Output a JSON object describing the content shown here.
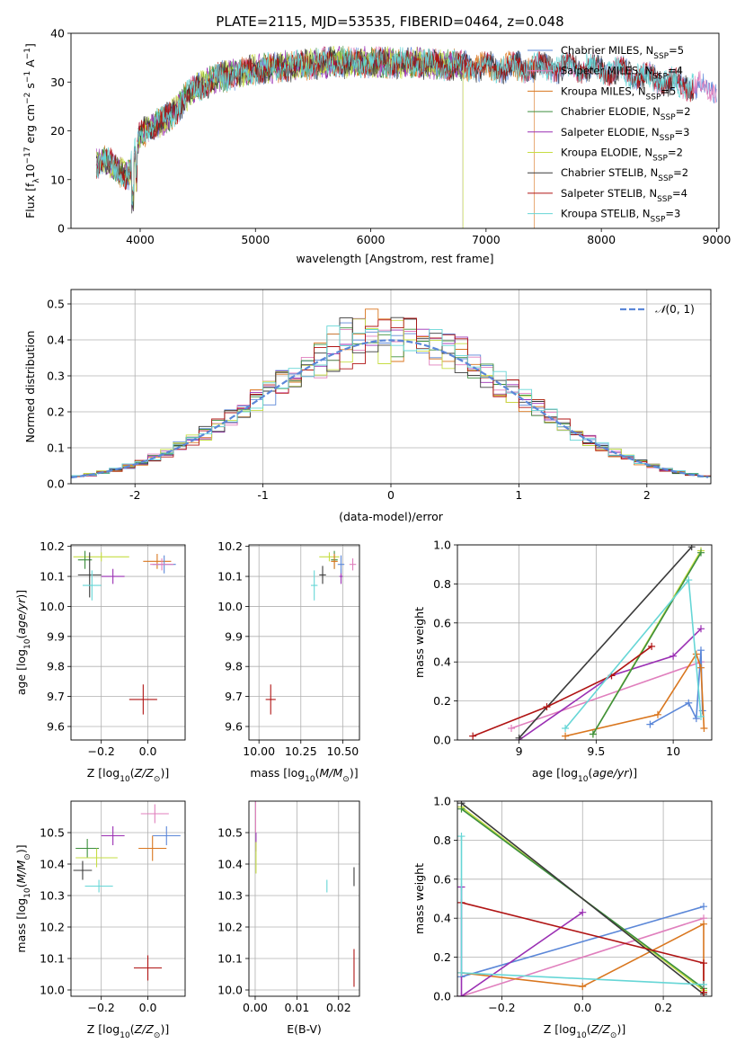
{
  "figure": {
    "title": "PLATE=2115, MJD=53535, FIBERID=0464, z=0.048"
  },
  "colors": {
    "chabrier_miles": "#5b87d8",
    "salpeter_miles": "#e07fbd",
    "kroupa_miles": "#d9761e",
    "chabrier_elodie": "#3d8f3d",
    "salpeter_elodie": "#9a2fb3",
    "kroupa_elodie": "#c6dd43",
    "chabrier_stelib": "#3a3a3a",
    "salpeter_stelib": "#b01414",
    "kroupa_stelib": "#66d6d6",
    "normal_curve": "#5b87d8"
  },
  "chart_data": [
    {
      "id": "spectrum",
      "type": "line",
      "xlabel": "wavelength [Angstrom, rest frame]",
      "ylabel": "Flux [f_λ 10^-17 erg cm^-2 s^-1 A^-1]",
      "xlim": [
        3400,
        9020
      ],
      "ylim": [
        0,
        40
      ],
      "xticks": [
        4000,
        5000,
        6000,
        7000,
        8000,
        9000
      ],
      "yticks": [
        0,
        10,
        20,
        30,
        40
      ],
      "grid": false,
      "legend_position": "top-right",
      "series": [
        {
          "name": "Chabrier MILES",
          "n_ssp": "5",
          "color_key": "chabrier_miles",
          "x": [
            3620,
            9000
          ]
        },
        {
          "name": "Salpeter MILES",
          "n_ssp": "4",
          "color_key": "salpeter_miles",
          "x": [
            3620,
            9000
          ]
        },
        {
          "name": "Kroupa MILES",
          "n_ssp": "5",
          "color_key": "kroupa_miles",
          "x": [
            3620,
            7420
          ]
        },
        {
          "name": "Chabrier ELODIE",
          "n_ssp": "2",
          "color_key": "chabrier_elodie",
          "x": [
            3620,
            6800
          ]
        },
        {
          "name": "Salpeter ELODIE",
          "n_ssp": "3",
          "color_key": "salpeter_elodie",
          "x": [
            3620,
            6800
          ]
        },
        {
          "name": "Kroupa ELODIE",
          "n_ssp": "2",
          "color_key": "kroupa_elodie",
          "x": [
            3620,
            6800
          ]
        },
        {
          "name": "Chabrier STELIB",
          "n_ssp": "2",
          "color_key": "chabrier_stelib",
          "x": [
            3620,
            8800
          ]
        },
        {
          "name": "Salpeter STELIB",
          "n_ssp": "4",
          "color_key": "salpeter_stelib",
          "x": [
            3620,
            8800
          ]
        },
        {
          "name": "Kroupa STELIB",
          "n_ssp": "3",
          "color_key": "kroupa_stelib",
          "x": [
            3620,
            8800
          ]
        }
      ],
      "continuum": {
        "x": [
          3620,
          3700,
          3800,
          3900,
          3950,
          4000,
          4100,
          4200,
          4300,
          4400,
          4500,
          4600,
          4700,
          4800,
          4900,
          5000,
          5200,
          5400,
          5600,
          5800,
          6000,
          6200,
          6400,
          6600,
          6800,
          7000,
          7200,
          7400,
          7600,
          7800,
          8000,
          8200,
          8400,
          8600,
          8800,
          9000
        ],
        "y": [
          13,
          14,
          12,
          11,
          15,
          19,
          21,
          22,
          24,
          27,
          29,
          30,
          31,
          31.5,
          32,
          32.5,
          33,
          33.5,
          34,
          34,
          34,
          34,
          34,
          33.5,
          33.5,
          33,
          33,
          33,
          33,
          33,
          32.5,
          32,
          31,
          30,
          29,
          28.5
        ]
      }
    },
    {
      "id": "residuals",
      "type": "histogram",
      "xlabel": "(data-model)/error",
      "ylabel": "Normed distribution",
      "xlim": [
        -2.5,
        2.5
      ],
      "ylim": [
        0,
        0.54
      ],
      "xticks": [
        -2,
        -1,
        0,
        1,
        2
      ],
      "yticks": [
        0.0,
        0.1,
        0.2,
        0.3,
        0.4,
        0.5
      ],
      "grid": true,
      "legend": [
        {
          "name": "𝒩(0,1)",
          "style": "dashed",
          "color_key": "normal_curve"
        }
      ],
      "legend_position": "top-right",
      "bin_width": 0.1
    },
    {
      "id": "age_vs_Z",
      "type": "errorbar",
      "xlabel": "Z [log10(Z/Z⊙)]",
      "ylabel": "age  [log10(age/yr)]",
      "xlim": [
        -0.33,
        0.16
      ],
      "ylim": [
        9.555,
        10.205
      ],
      "xticks": [
        -0.2,
        0.0
      ],
      "xticklabels": [
        "−0.2",
        "0.0"
      ],
      "yticks": [
        9.6,
        9.7,
        9.8,
        9.9,
        10.0,
        10.1,
        10.2
      ],
      "grid": true,
      "points": [
        {
          "color_key": "kroupa_elodie",
          "x": -0.2,
          "y": 10.165,
          "xerr": 0.12,
          "yerr": 0.015
        },
        {
          "color_key": "chabrier_elodie",
          "x": -0.27,
          "y": 10.155,
          "xerr": 0.03,
          "yerr": 0.03
        },
        {
          "color_key": "chabrier_stelib",
          "x": -0.25,
          "y": 10.105,
          "xerr": 0.05,
          "yerr": 0.075
        },
        {
          "color_key": "kroupa_stelib",
          "x": -0.24,
          "y": 10.07,
          "xerr": 0.04,
          "yerr": 0.05
        },
        {
          "color_key": "salpeter_elodie",
          "x": -0.15,
          "y": 10.1,
          "xerr": 0.05,
          "yerr": 0.025
        },
        {
          "color_key": "kroupa_miles",
          "x": 0.04,
          "y": 10.15,
          "xerr": 0.06,
          "yerr": 0.025
        },
        {
          "color_key": "chabrier_miles",
          "x": 0.07,
          "y": 10.14,
          "xerr": 0.05,
          "yerr": 0.03
        },
        {
          "color_key": "salpeter_miles",
          "x": 0.06,
          "y": 10.14,
          "xerr": 0.05,
          "yerr": 0.02
        },
        {
          "color_key": "salpeter_stelib",
          "x": -0.02,
          "y": 9.69,
          "xerr": 0.06,
          "yerr": 0.05
        }
      ]
    },
    {
      "id": "age_vs_mass",
      "type": "errorbar",
      "xlabel": "mass [log10(M/M⊙)]",
      "xlim": [
        9.94,
        10.6
      ],
      "ylim": [
        9.555,
        10.205
      ],
      "xticks": [
        10.0,
        10.25,
        10.5
      ],
      "xticklabels": [
        "10.00",
        "10.25",
        "10.50"
      ],
      "yticks": [
        9.6,
        9.7,
        9.8,
        9.9,
        10.0,
        10.1,
        10.2
      ],
      "grid": true,
      "points": [
        {
          "color_key": "kroupa_elodie",
          "x": 10.42,
          "y": 10.165,
          "xerr": 0.06,
          "yerr": 0.015
        },
        {
          "color_key": "chabrier_elodie",
          "x": 10.45,
          "y": 10.155,
          "xerr": 0.02,
          "yerr": 0.03
        },
        {
          "color_key": "chabrier_stelib",
          "x": 10.38,
          "y": 10.105,
          "xerr": 0.02,
          "yerr": 0.03
        },
        {
          "color_key": "kroupa_stelib",
          "x": 10.33,
          "y": 10.07,
          "xerr": 0.02,
          "yerr": 0.05
        },
        {
          "color_key": "salpeter_elodie",
          "x": 10.49,
          "y": 10.1,
          "xerr": 0.01,
          "yerr": 0.025
        },
        {
          "color_key": "kroupa_miles",
          "x": 10.45,
          "y": 10.15,
          "xerr": 0.02,
          "yerr": 0.025
        },
        {
          "color_key": "chabrier_miles",
          "x": 10.49,
          "y": 10.14,
          "xerr": 0.02,
          "yerr": 0.03
        },
        {
          "color_key": "salpeter_miles",
          "x": 10.56,
          "y": 10.14,
          "xerr": 0.02,
          "yerr": 0.02
        },
        {
          "color_key": "salpeter_stelib",
          "x": 10.07,
          "y": 9.69,
          "xerr": 0.03,
          "yerr": 0.05
        }
      ]
    },
    {
      "id": "mass_weight_vs_age",
      "type": "line",
      "xlabel": "age  [log10(age/yr)]",
      "ylabel": "mass weight",
      "xlim": [
        8.6,
        10.25
      ],
      "ylim": [
        0,
        1.0
      ],
      "xticks": [
        9.0,
        9.5,
        10.0
      ],
      "yticks": [
        0.0,
        0.2,
        0.4,
        0.6,
        0.8,
        1.0
      ],
      "grid": true,
      "series": [
        {
          "color_key": "salpeter_miles",
          "x": [
            8.95,
            10.18
          ],
          "y": [
            0.06,
            0.4
          ]
        },
        {
          "color_key": "chabrier_miles",
          "x": [
            9.85,
            10.1,
            10.15,
            10.18,
            10.19
          ],
          "y": [
            0.08,
            0.19,
            0.11,
            0.46,
            0.15
          ]
        },
        {
          "color_key": "kroupa_miles",
          "x": [
            9.3,
            9.9,
            10.15,
            10.18,
            10.2
          ],
          "y": [
            0.02,
            0.13,
            0.44,
            0.37,
            0.06
          ]
        },
        {
          "color_key": "salpeter_elodie",
          "x": [
            9.0,
            9.6,
            10.0,
            10.18
          ],
          "y": [
            0.0,
            0.33,
            0.43,
            0.57
          ]
        },
        {
          "color_key": "kroupa_elodie",
          "x": [
            9.48,
            10.18
          ],
          "y": [
            0.03,
            0.97
          ]
        },
        {
          "color_key": "chabrier_elodie",
          "x": [
            9.48,
            10.18
          ],
          "y": [
            0.03,
            0.96
          ]
        },
        {
          "color_key": "chabrier_stelib",
          "x": [
            9.0,
            10.12
          ],
          "y": [
            0.01,
            0.99
          ]
        },
        {
          "color_key": "salpeter_stelib",
          "x": [
            8.7,
            9.18,
            9.6,
            9.86
          ],
          "y": [
            0.02,
            0.17,
            0.33,
            0.48
          ]
        },
        {
          "color_key": "kroupa_stelib",
          "x": [
            9.3,
            10.1,
            10.18
          ],
          "y": [
            0.06,
            0.82,
            0.12
          ]
        }
      ]
    },
    {
      "id": "mass_vs_Z",
      "type": "errorbar",
      "xlabel": "Z [log10(Z/Z⊙)]",
      "ylabel": "mass [log10(M/M⊙)]",
      "xlim": [
        -0.33,
        0.16
      ],
      "ylim": [
        9.98,
        10.6
      ],
      "xticks": [
        -0.2,
        0.0
      ],
      "xticklabels": [
        "−0.2",
        "0.0"
      ],
      "yticks": [
        10.0,
        10.1,
        10.2,
        10.3,
        10.4,
        10.5
      ],
      "grid": true,
      "points": [
        {
          "color_key": "salpeter_miles",
          "x": 0.03,
          "y": 10.56,
          "xerr": 0.06,
          "yerr": 0.03
        },
        {
          "color_key": "chabrier_miles",
          "x": 0.08,
          "y": 10.49,
          "xerr": 0.06,
          "yerr": 0.03
        },
        {
          "color_key": "salpeter_elodie",
          "x": -0.15,
          "y": 10.49,
          "xerr": 0.05,
          "yerr": 0.03
        },
        {
          "color_key": "kroupa_miles",
          "x": 0.02,
          "y": 10.45,
          "xerr": 0.06,
          "yerr": 0.04
        },
        {
          "color_key": "chabrier_elodie",
          "x": -0.26,
          "y": 10.45,
          "xerr": 0.05,
          "yerr": 0.03
        },
        {
          "color_key": "kroupa_elodie",
          "x": -0.22,
          "y": 10.42,
          "xerr": 0.09,
          "yerr": 0.03
        },
        {
          "color_key": "chabrier_stelib",
          "x": -0.28,
          "y": 10.38,
          "xerr": 0.04,
          "yerr": 0.03
        },
        {
          "color_key": "kroupa_stelib",
          "x": -0.21,
          "y": 10.33,
          "xerr": 0.06,
          "yerr": 0.02
        },
        {
          "color_key": "salpeter_stelib",
          "x": 0.0,
          "y": 10.07,
          "xerr": 0.06,
          "yerr": 0.04
        }
      ]
    },
    {
      "id": "mass_vs_ebv",
      "type": "errorbar",
      "xlabel": "E(B-V)",
      "xlim": [
        -0.0015,
        0.025
      ],
      "ylim": [
        9.98,
        10.6
      ],
      "xticks": [
        0.0,
        0.01,
        0.02
      ],
      "xticklabels": [
        "0.00",
        "0.01",
        "0.02"
      ],
      "yticks": [
        10.0,
        10.1,
        10.2,
        10.3,
        10.4,
        10.5
      ],
      "grid": true,
      "points": [
        {
          "color_key": "salpeter_miles",
          "x": 0.0001,
          "y": 10.55,
          "xerr": 0.0,
          "yerr": 0.05
        },
        {
          "color_key": "salpeter_elodie",
          "x": 0.0002,
          "y": 10.47,
          "xerr": 0.0,
          "yerr": 0.03
        },
        {
          "color_key": "kroupa_elodie",
          "x": 0.0002,
          "y": 10.42,
          "xerr": 0.0,
          "yerr": 0.05
        },
        {
          "color_key": "chabrier_stelib",
          "x": 0.0237,
          "y": 10.36,
          "xerr": 0.0,
          "yerr": 0.03
        },
        {
          "color_key": "kroupa_stelib",
          "x": 0.0172,
          "y": 10.33,
          "xerr": 0.0,
          "yerr": 0.02
        },
        {
          "color_key": "salpeter_stelib",
          "x": 0.0237,
          "y": 10.07,
          "xerr": 0.0,
          "yerr": 0.06
        }
      ]
    },
    {
      "id": "mass_weight_vs_Z",
      "type": "line",
      "xlabel": "Z [log10(Z/Z⊙)]",
      "ylabel": "mass weight",
      "xlim": [
        -0.31,
        0.32
      ],
      "ylim": [
        0,
        1.0
      ],
      "xticks": [
        -0.2,
        0.0,
        0.2
      ],
      "xticklabels": [
        "−0.2",
        "0.0",
        "0.2"
      ],
      "yticks": [
        0.0,
        0.2,
        0.4,
        0.6,
        0.8,
        1.0
      ],
      "grid": true,
      "series": [
        {
          "color_key": "chabrier_miles",
          "x": [
            -0.3,
            0.3
          ],
          "y": [
            0.1,
            0.46
          ]
        },
        {
          "color_key": "salpeter_miles",
          "x": [
            -0.3,
            0.3
          ],
          "y": [
            0.0,
            0.4
          ]
        },
        {
          "color_key": "kroupa_miles",
          "x": [
            -0.3,
            0.0,
            0.3,
            0.3
          ],
          "y": [
            0.12,
            0.05,
            0.37,
            0.02
          ]
        },
        {
          "color_key": "salpeter_elodie",
          "x": [
            -0.3,
            -0.3,
            0.0
          ],
          "y": [
            0.56,
            0.0,
            0.43
          ]
        },
        {
          "color_key": "kroupa_elodie",
          "x": [
            -0.3,
            0.3
          ],
          "y": [
            0.97,
            0.03
          ]
        },
        {
          "color_key": "chabrier_elodie",
          "x": [
            -0.3,
            0.3
          ],
          "y": [
            0.96,
            0.04
          ]
        },
        {
          "color_key": "chabrier_stelib",
          "x": [
            -0.3,
            0.3
          ],
          "y": [
            0.99,
            0.01
          ]
        },
        {
          "color_key": "salpeter_stelib",
          "x": [
            -0.3,
            0.3,
            0.3
          ],
          "y": [
            0.48,
            0.17,
            0.02
          ]
        },
        {
          "color_key": "kroupa_stelib",
          "x": [
            -0.3,
            -0.3,
            0.3
          ],
          "y": [
            0.82,
            0.12,
            0.06
          ]
        }
      ]
    }
  ]
}
